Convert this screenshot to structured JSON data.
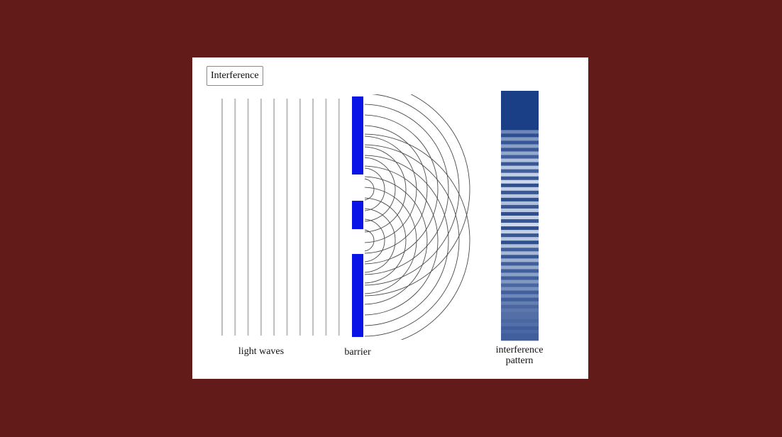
{
  "title": "Interference",
  "labels": {
    "light_waves": "light waves",
    "barrier": "barrier",
    "pattern_line1": "interference",
    "pattern_line2": "pattern"
  },
  "colors": {
    "background": "#631b1a",
    "panel": "#ffffff",
    "light_wave_lines": "#bdbdbd",
    "barrier": "#0a14e6",
    "wavefronts": "#4a4a4a",
    "pattern_dark": "#1b3f86",
    "pattern_light": "#d5e0f2"
  },
  "light_wave_count": 10,
  "slit_count": 2,
  "wavefront_count_per_slit": 10,
  "pattern_band_intensity": [
    0.0,
    0.0,
    0.0,
    0.0,
    0.0,
    0.0,
    0.0,
    0.0,
    0.0,
    0.0,
    0.0,
    0.45,
    0.1,
    0.55,
    0.15,
    0.6,
    0.15,
    0.65,
    0.2,
    0.8,
    0.15,
    0.85,
    0.2,
    0.9,
    0.15,
    0.95,
    0.1,
    0.9,
    0.15,
    0.85,
    0.1,
    0.8,
    0.15,
    0.85,
    0.1,
    0.9,
    0.15,
    0.95,
    0.1,
    0.9,
    0.15,
    0.85,
    0.1,
    0.8,
    0.2,
    0.75,
    0.15,
    0.7,
    0.2,
    0.65,
    0.2,
    0.6,
    0.2,
    0.55,
    0.25,
    0.5,
    0.2,
    0.45,
    0.2,
    0.4,
    0.25,
    0.35,
    0.3,
    0.3,
    0.25,
    0.3,
    0.2,
    0.25,
    0.2,
    0.2
  ]
}
